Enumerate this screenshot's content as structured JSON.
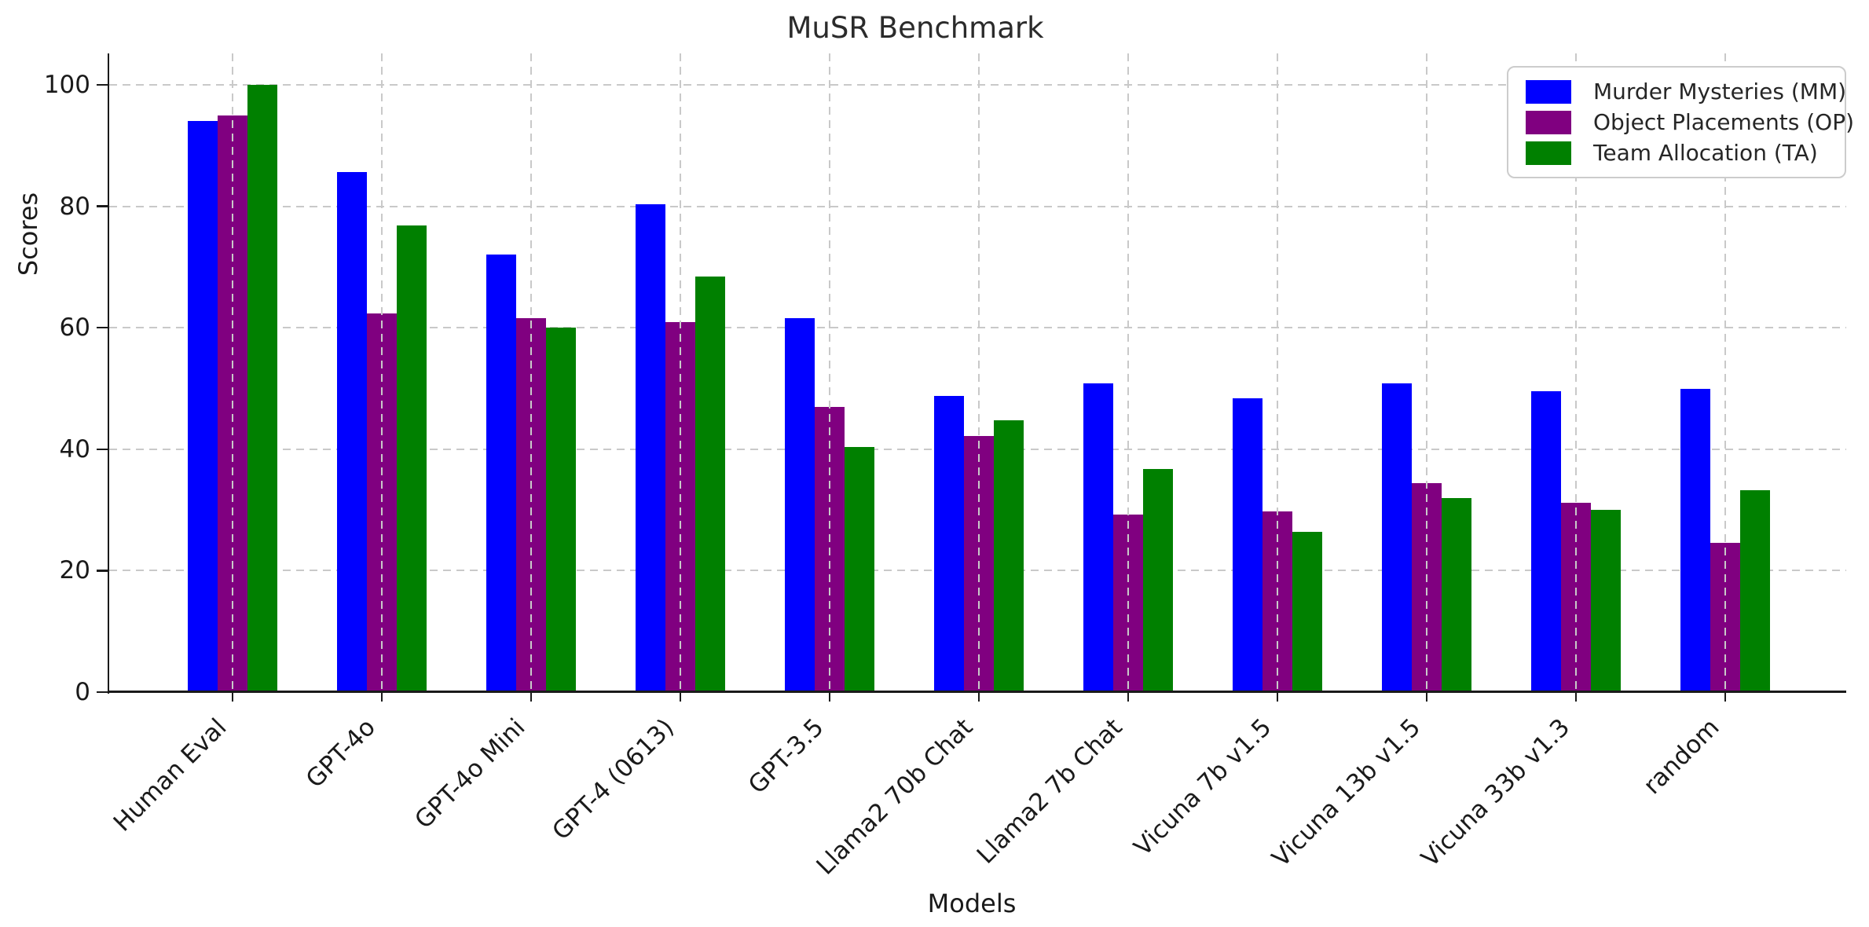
{
  "figure": {
    "title": "MuSR Benchmark",
    "xlabel": "Models",
    "ylabel": "Scores"
  },
  "chart_data": {
    "type": "bar",
    "title": "MuSR Benchmark",
    "xlabel": "Models",
    "ylabel": "Scores",
    "categories": [
      "Human Eval",
      "GPT-4o",
      "GPT-4o Mini",
      "GPT-4 (0613)",
      "GPT-3.5",
      "Llama2 70b Chat",
      "Llama2 7b Chat",
      "Vicuna 7b v1.5",
      "Vicuna 13b v1.5",
      "Vicuna 33b v1.3",
      "random"
    ],
    "series": [
      {
        "name": "Murder Mysteries (MM)",
        "color": "#0000ff",
        "values": [
          94.1,
          85.6,
          72.0,
          80.4,
          61.6,
          48.8,
          50.8,
          48.4,
          50.8,
          49.6,
          50.0
        ]
      },
      {
        "name": "Object Placements (OP)",
        "color": "#800080",
        "values": [
          95.0,
          62.4,
          61.6,
          60.9,
          46.9,
          42.2,
          29.3,
          29.7,
          34.4,
          31.2,
          24.6
        ]
      },
      {
        "name": "Team Allocation (TA)",
        "color": "#008000",
        "values": [
          100.0,
          76.8,
          60.0,
          68.4,
          40.4,
          44.8,
          36.8,
          26.4,
          32.0,
          30.0,
          33.3
        ]
      }
    ],
    "ylim": [
      0,
      105
    ],
    "yticks": [
      0,
      20,
      40,
      60,
      80,
      100
    ],
    "grid": true,
    "legend_position": "upper right"
  },
  "colors": {
    "grid": "#c9c9c9",
    "axis": "#1a1a1a",
    "text": "#1a1a1a",
    "legend_border": "#cccccc",
    "background": "#ffffff"
  }
}
